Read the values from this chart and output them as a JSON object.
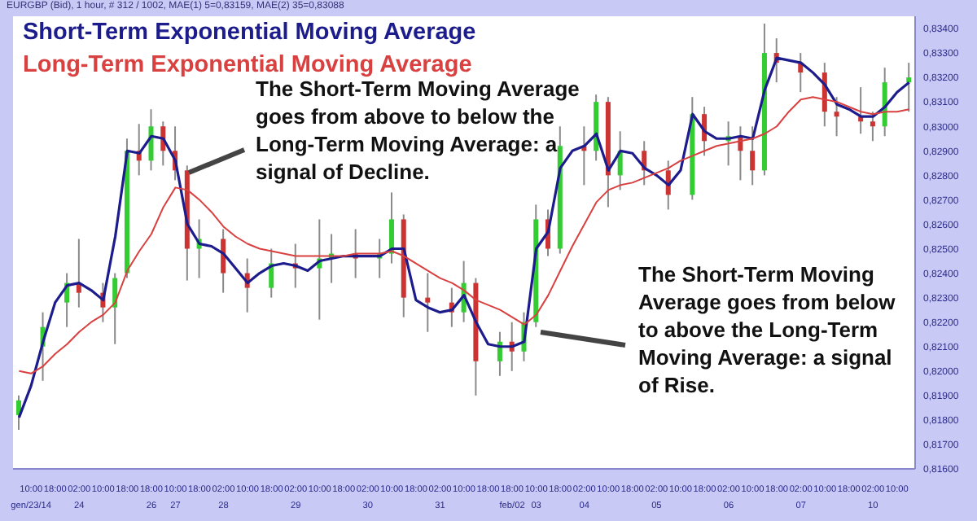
{
  "chart_data": {
    "type": "candlestick",
    "title": "EURGBP (Bid), 1 hour, # 312 / 1002, MAE(1) 5=0,83159, MAE(2) 35=0,83088",
    "legend": "top left",
    "marker": "none",
    "line_style": "solid",
    "annotations": [
      "The Short-Term Moving Average goes from above to below the Long-Term Moving Average: a signal of Decline.",
      "The Short-Term Moving Average goes from below to above the Long-Term Moving Average: a signal of Rise."
    ],
    "categories": [
      null,
      "10:00\ngen/23/14",
      null,
      "18:00",
      null,
      "02:00\n24",
      null,
      "10:00",
      null,
      "18:00",
      null,
      "18:00\n26",
      null,
      "10:00\n27",
      null,
      "18:00",
      null,
      "02:00\n28",
      null,
      "10:00",
      null,
      "18:00",
      null,
      "02:00\n29",
      null,
      "10:00",
      null,
      "18:00",
      null,
      "02:00\n30",
      null,
      "10:00",
      null,
      "18:00",
      null,
      "02:00\n31",
      null,
      "10:00",
      null,
      "18:00",
      null,
      "18:00\nfeb/02",
      null,
      "10:00\n03",
      null,
      "18:00",
      null,
      "02:00\n04",
      null,
      "10:00",
      null,
      "18:00",
      null,
      "02:00\n05",
      null,
      "10:00",
      null,
      "18:00",
      null,
      "02:00\n06",
      null,
      "10:00",
      null,
      "18:00",
      null,
      "02:00\n07",
      null,
      "10:00",
      null,
      "18:00",
      null,
      "02:00\n10",
      null,
      "10:00",
      null
    ],
    "ylim": [
      0.816,
      0.8345
    ],
    "yticks": [
      {
        "value": 0.816,
        "label": "0,81600"
      },
      {
        "value": 0.817,
        "label": "0,81700"
      },
      {
        "value": 0.818,
        "label": "0,81800"
      },
      {
        "value": 0.819,
        "label": "0,81900"
      },
      {
        "value": 0.82,
        "label": "0,82000"
      },
      {
        "value": 0.821,
        "label": "0,82100"
      },
      {
        "value": 0.822,
        "label": "0,82200"
      },
      {
        "value": 0.823,
        "label": "0,82300"
      },
      {
        "value": 0.824,
        "label": "0,82400"
      },
      {
        "value": 0.825,
        "label": "0,82500"
      },
      {
        "value": 0.826,
        "label": "0,82600"
      },
      {
        "value": 0.827,
        "label": "0,82700"
      },
      {
        "value": 0.828,
        "label": "0,82800"
      },
      {
        "value": 0.829,
        "label": "0,82900"
      },
      {
        "value": 0.83,
        "label": "0,83000"
      },
      {
        "value": 0.831,
        "label": "0,83100"
      },
      {
        "value": 0.832,
        "label": "0,83200"
      },
      {
        "value": 0.833,
        "label": "0,83300"
      },
      {
        "value": 0.834,
        "label": "0,83400"
      }
    ],
    "series": [
      {
        "type": "candlestick",
        "ohlc": [
          [
            0.8182,
            0.819,
            0.8176,
            0.8188
          ],
          null,
          [
            0.821,
            0.8224,
            0.8196,
            0.8218
          ],
          null,
          [
            0.8228,
            0.824,
            0.8218,
            0.8236
          ],
          [
            0.8236,
            0.8254,
            0.8226,
            0.8232
          ],
          null,
          [
            0.8232,
            0.8236,
            0.822,
            0.8226
          ],
          [
            0.8226,
            0.824,
            0.8211,
            0.8238
          ],
          [
            0.824,
            0.8295,
            0.8238,
            0.829
          ],
          [
            0.829,
            0.8301,
            0.828,
            0.8286
          ],
          [
            0.8286,
            0.8307,
            0.8282,
            0.83
          ],
          [
            0.83,
            0.8302,
            0.8284,
            0.829
          ],
          [
            0.829,
            0.83,
            0.8278,
            0.8282
          ],
          [
            0.8282,
            0.8284,
            0.8237,
            0.825
          ],
          [
            0.825,
            0.8262,
            0.8238,
            0.8254
          ],
          null,
          [
            0.8254,
            0.8258,
            0.8232,
            0.824
          ],
          null,
          [
            0.824,
            0.8246,
            0.8224,
            0.8234
          ],
          null,
          [
            0.8234,
            0.825,
            0.823,
            0.8244
          ],
          null,
          [
            0.8244,
            0.8252,
            0.8234,
            0.8242
          ],
          null,
          [
            0.8242,
            0.8262,
            0.8221,
            0.8246
          ],
          [
            0.8246,
            0.8256,
            0.8236,
            0.8248
          ],
          null,
          [
            0.8248,
            0.8258,
            0.8238,
            0.8246
          ],
          null,
          [
            0.8246,
            0.8254,
            0.8238,
            0.8248
          ],
          [
            0.8248,
            0.8273,
            0.8244,
            0.8262
          ],
          [
            0.8262,
            0.8264,
            0.8222,
            0.823
          ],
          null,
          [
            0.823,
            0.824,
            0.8216,
            0.8228
          ],
          null,
          [
            0.8228,
            0.8234,
            0.8218,
            0.8224
          ],
          [
            0.8224,
            0.8245,
            0.822,
            0.8236
          ],
          [
            0.8236,
            0.8238,
            0.819,
            0.8204
          ],
          null,
          [
            0.8204,
            0.8216,
            0.8198,
            0.8212
          ],
          [
            0.8212,
            0.822,
            0.82,
            0.8208
          ],
          [
            0.8208,
            0.8224,
            0.8204,
            0.822
          ],
          [
            0.822,
            0.8268,
            0.8218,
            0.8262
          ],
          [
            0.8262,
            0.8266,
            0.8247,
            0.825
          ],
          [
            0.825,
            0.83,
            0.8248,
            0.8292
          ],
          null,
          [
            0.8292,
            0.83,
            0.8276,
            0.829
          ],
          [
            0.829,
            0.8313,
            0.8286,
            0.831
          ],
          [
            0.831,
            0.8312,
            0.8267,
            0.828
          ],
          [
            0.828,
            0.8298,
            0.8274,
            0.829
          ],
          null,
          [
            0.829,
            0.8294,
            0.8276,
            0.8282
          ],
          null,
          [
            0.8282,
            0.8286,
            0.8266,
            0.8272
          ],
          null,
          [
            0.8272,
            0.8312,
            0.827,
            0.8305
          ],
          [
            0.8305,
            0.8308,
            0.8288,
            0.8294
          ],
          null,
          [
            0.8294,
            0.8302,
            0.8284,
            0.8296
          ],
          [
            0.8296,
            0.83,
            0.8278,
            0.829
          ],
          [
            0.829,
            0.83,
            0.8276,
            0.8282
          ],
          [
            0.8282,
            0.8342,
            0.828,
            0.833
          ],
          [
            0.833,
            0.8336,
            0.8318,
            0.8326
          ],
          null,
          [
            0.8326,
            0.833,
            0.8314,
            0.8322
          ],
          null,
          [
            0.8322,
            0.8326,
            0.83,
            0.8306
          ],
          [
            0.8306,
            0.8312,
            0.8296,
            0.8304
          ],
          null,
          [
            0.8304,
            0.8316,
            0.8297,
            0.8302
          ],
          [
            0.8302,
            0.8306,
            0.8294,
            0.83
          ],
          [
            0.83,
            0.8324,
            0.8296,
            0.8318
          ],
          null,
          [
            0.8318,
            0.8326,
            0.8306,
            0.832
          ]
        ],
        "colors": [
          "#33cc33",
          null,
          "#33cc33",
          null,
          "#33cc33",
          "#cc3333",
          null,
          "#cc3333",
          "#33cc33",
          "#33cc33",
          "#cc3333",
          "#33cc33",
          "#cc3333",
          "#cc3333",
          "#cc3333",
          "#33cc33",
          null,
          "#cc3333",
          null,
          "#cc3333",
          null,
          "#33cc33",
          null,
          "#cc3333",
          null,
          "#33cc33",
          "#33cc33",
          null,
          "#cc3333",
          null,
          "#33cc33",
          "#33cc33",
          "#cc3333",
          null,
          "#cc3333",
          null,
          "#cc3333",
          "#33cc33",
          "#cc3333",
          null,
          "#33cc33",
          "#cc3333",
          "#33cc33",
          "#33cc33",
          "#cc3333",
          "#33cc33",
          null,
          "#cc3333",
          "#33cc33",
          "#cc3333",
          "#33cc33",
          null,
          "#cc3333",
          null,
          "#cc3333",
          null,
          "#33cc33",
          "#cc3333",
          null,
          "#33cc33",
          "#cc3333",
          "#cc3333",
          "#33cc33",
          "#cc3333",
          null,
          "#cc3333",
          null,
          "#cc3333",
          "#cc3333",
          null,
          "#cc3333",
          "#cc3333",
          "#33cc33",
          null,
          "#33cc33"
        ]
      },
      {
        "type": "line",
        "name": "Short-Term Exponential Moving Average",
        "color": "#1c1c8c",
        "values": [
          0.8181,
          0.8194,
          0.8212,
          0.8228,
          0.8235,
          0.8236,
          0.8233,
          0.8229,
          0.8255,
          0.829,
          0.8289,
          0.8296,
          0.8295,
          0.8286,
          0.826,
          0.8252,
          0.8251,
          0.8248,
          0.8242,
          0.8236,
          0.824,
          0.8243,
          0.8244,
          0.8243,
          0.8241,
          0.8245,
          0.8246,
          0.8247,
          0.8247,
          0.8247,
          0.8247,
          0.825,
          0.825,
          0.8229,
          0.8226,
          0.8224,
          0.8225,
          0.8231,
          0.822,
          0.8211,
          0.821,
          0.821,
          0.8212,
          0.825,
          0.8257,
          0.8283,
          0.829,
          0.8292,
          0.8297,
          0.8282,
          0.829,
          0.8289,
          0.8283,
          0.828,
          0.8276,
          0.8282,
          0.8305,
          0.8298,
          0.8295,
          0.8295,
          0.8296,
          0.8295,
          0.8315,
          0.8328,
          0.8327,
          0.8326,
          0.8322,
          0.8317,
          0.8309,
          0.8307,
          0.8304,
          0.8304,
          0.8308,
          0.8314,
          0.8318
        ]
      },
      {
        "type": "line",
        "name": "Long-Term Exponential Moving Average",
        "color": "#d94040",
        "values": [
          0.82,
          0.8199,
          0.8202,
          0.8207,
          0.8211,
          0.8216,
          0.822,
          0.8223,
          0.8228,
          0.8241,
          0.8249,
          0.8256,
          0.8267,
          0.8275,
          0.8274,
          0.827,
          0.8265,
          0.8259,
          0.8255,
          0.8252,
          0.825,
          0.8249,
          0.8248,
          0.8247,
          0.8247,
          0.8247,
          0.8247,
          0.8247,
          0.8248,
          0.8248,
          0.8248,
          0.8249,
          0.8247,
          0.8244,
          0.8241,
          0.8238,
          0.8236,
          0.8233,
          0.8229,
          0.8227,
          0.8225,
          0.8222,
          0.8219,
          0.8223,
          0.8231,
          0.8241,
          0.8251,
          0.826,
          0.8269,
          0.8274,
          0.8276,
          0.8277,
          0.8279,
          0.8281,
          0.8283,
          0.8286,
          0.8288,
          0.829,
          0.8292,
          0.8293,
          0.8294,
          0.8295,
          0.8297,
          0.83,
          0.8306,
          0.8311,
          0.8312,
          0.8311,
          0.831,
          0.8308,
          0.8306,
          0.8305,
          0.8306,
          0.8306,
          0.8307
        ]
      }
    ]
  }
}
